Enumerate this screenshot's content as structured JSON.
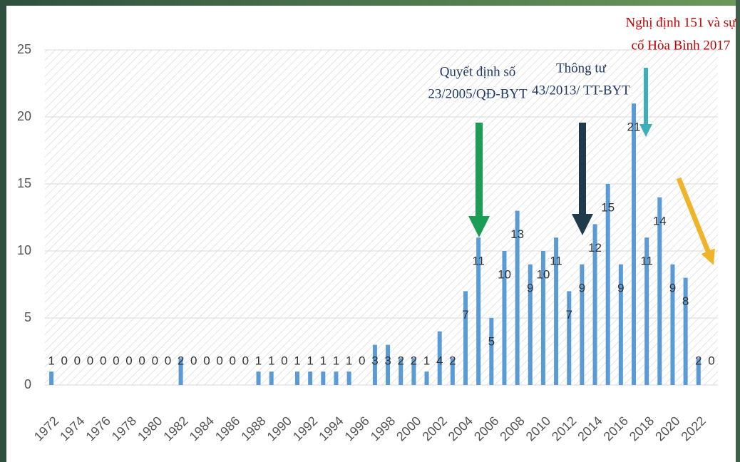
{
  "chart_data": {
    "type": "bar",
    "categories": [
      "1972",
      null,
      "1974",
      null,
      "1976",
      null,
      "1978",
      null,
      "1980",
      null,
      "1982",
      null,
      "1984",
      null,
      "1986",
      null,
      "1988",
      null,
      "1990",
      null,
      "1992",
      null,
      "1994",
      null,
      "1996",
      null,
      "1998",
      null,
      "2000",
      null,
      "2002",
      null,
      "2004",
      null,
      "2006",
      null,
      "2008",
      null,
      "2010",
      null,
      "2012",
      null,
      "2014",
      null,
      "2016",
      null,
      "2018",
      null,
      "2020",
      null,
      "2022",
      null
    ],
    "values": [
      1,
      0,
      0,
      0,
      0,
      0,
      0,
      0,
      0,
      0,
      2,
      0,
      0,
      0,
      0,
      0,
      1,
      1,
      0,
      1,
      1,
      1,
      1,
      1,
      0,
      3,
      3,
      2,
      2,
      1,
      4,
      2,
      7,
      11,
      5,
      10,
      13,
      9,
      10,
      11,
      7,
      9,
      12,
      15,
      9,
      21,
      11,
      14,
      9,
      8,
      2,
      0
    ],
    "color": "#5b9bd5",
    "ylim": [
      0,
      25
    ],
    "yticks": [
      0,
      5,
      10,
      15,
      20,
      25
    ],
    "grid": true,
    "annotations": [
      "Quyết định số",
      "23/2005/QĐ-BYT",
      "Thông tư",
      "43/2013/ TT-BYT",
      "Nghị định 151 và sự",
      "cố Hòa Bình 2017"
    ]
  }
}
